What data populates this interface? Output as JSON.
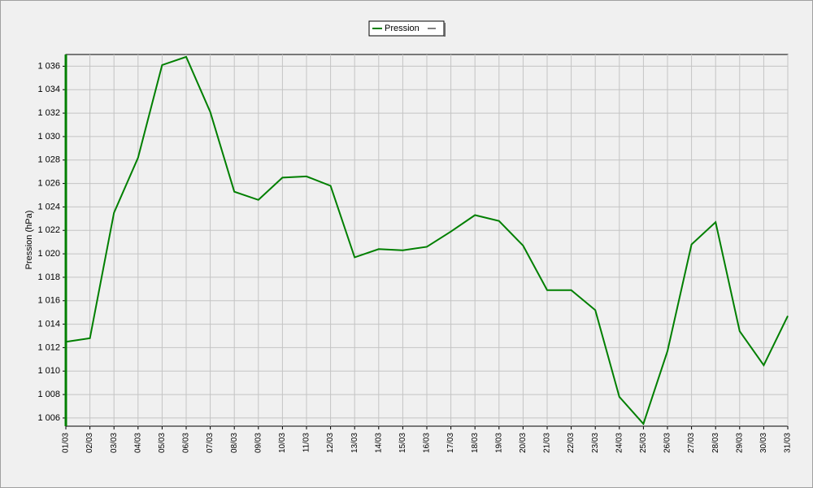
{
  "chart_data": {
    "type": "line",
    "y_label": "Pression (hPa)",
    "categories": [
      "01/03",
      "02/03",
      "03/03",
      "04/03",
      "05/03",
      "06/03",
      "07/03",
      "08/03",
      "09/03",
      "10/03",
      "11/03",
      "12/03",
      "13/03",
      "14/03",
      "15/03",
      "16/03",
      "17/03",
      "18/03",
      "19/03",
      "20/03",
      "21/03",
      "22/03",
      "23/03",
      "24/03",
      "25/03",
      "26/03",
      "27/03",
      "28/03",
      "29/03",
      "30/03",
      "31/03"
    ],
    "series": [
      {
        "name": "Pression",
        "color": "#007f00",
        "values": [
          1012.5,
          1012.8,
          1023.5,
          1028.2,
          1036.1,
          1036.8,
          1032.1,
          1025.3,
          1024.6,
          1026.5,
          1026.6,
          1025.8,
          1019.7,
          1020.4,
          1020.3,
          1020.6,
          1021.9,
          1023.3,
          1022.8,
          1020.7,
          1016.9,
          1016.9,
          1015.2,
          1007.8,
          1005.5,
          1011.7,
          1020.8,
          1022.7,
          1013.4,
          1010.5,
          1014.7
        ]
      }
    ],
    "ylim": [
      1005.3,
      1037
    ],
    "yticks": [
      {
        "value": 1006,
        "label": "1 006"
      },
      {
        "value": 1008,
        "label": "1 008"
      },
      {
        "value": 1010,
        "label": "1 010"
      },
      {
        "value": 1012,
        "label": "1 012"
      },
      {
        "value": 1014,
        "label": "1 014"
      },
      {
        "value": 1016,
        "label": "1 016"
      },
      {
        "value": 1018,
        "label": "1 018"
      },
      {
        "value": 1020,
        "label": "1 020"
      },
      {
        "value": 1022,
        "label": "1 022"
      },
      {
        "value": 1024,
        "label": "1 024"
      },
      {
        "value": 1026,
        "label": "1 026"
      },
      {
        "value": 1028,
        "label": "1 028"
      },
      {
        "value": 1030,
        "label": "1 030"
      },
      {
        "value": 1032,
        "label": "1 032"
      },
      {
        "value": 1034,
        "label": "1 034"
      },
      {
        "value": 1036,
        "label": "1 036"
      }
    ],
    "grid": true,
    "legend": "top"
  }
}
